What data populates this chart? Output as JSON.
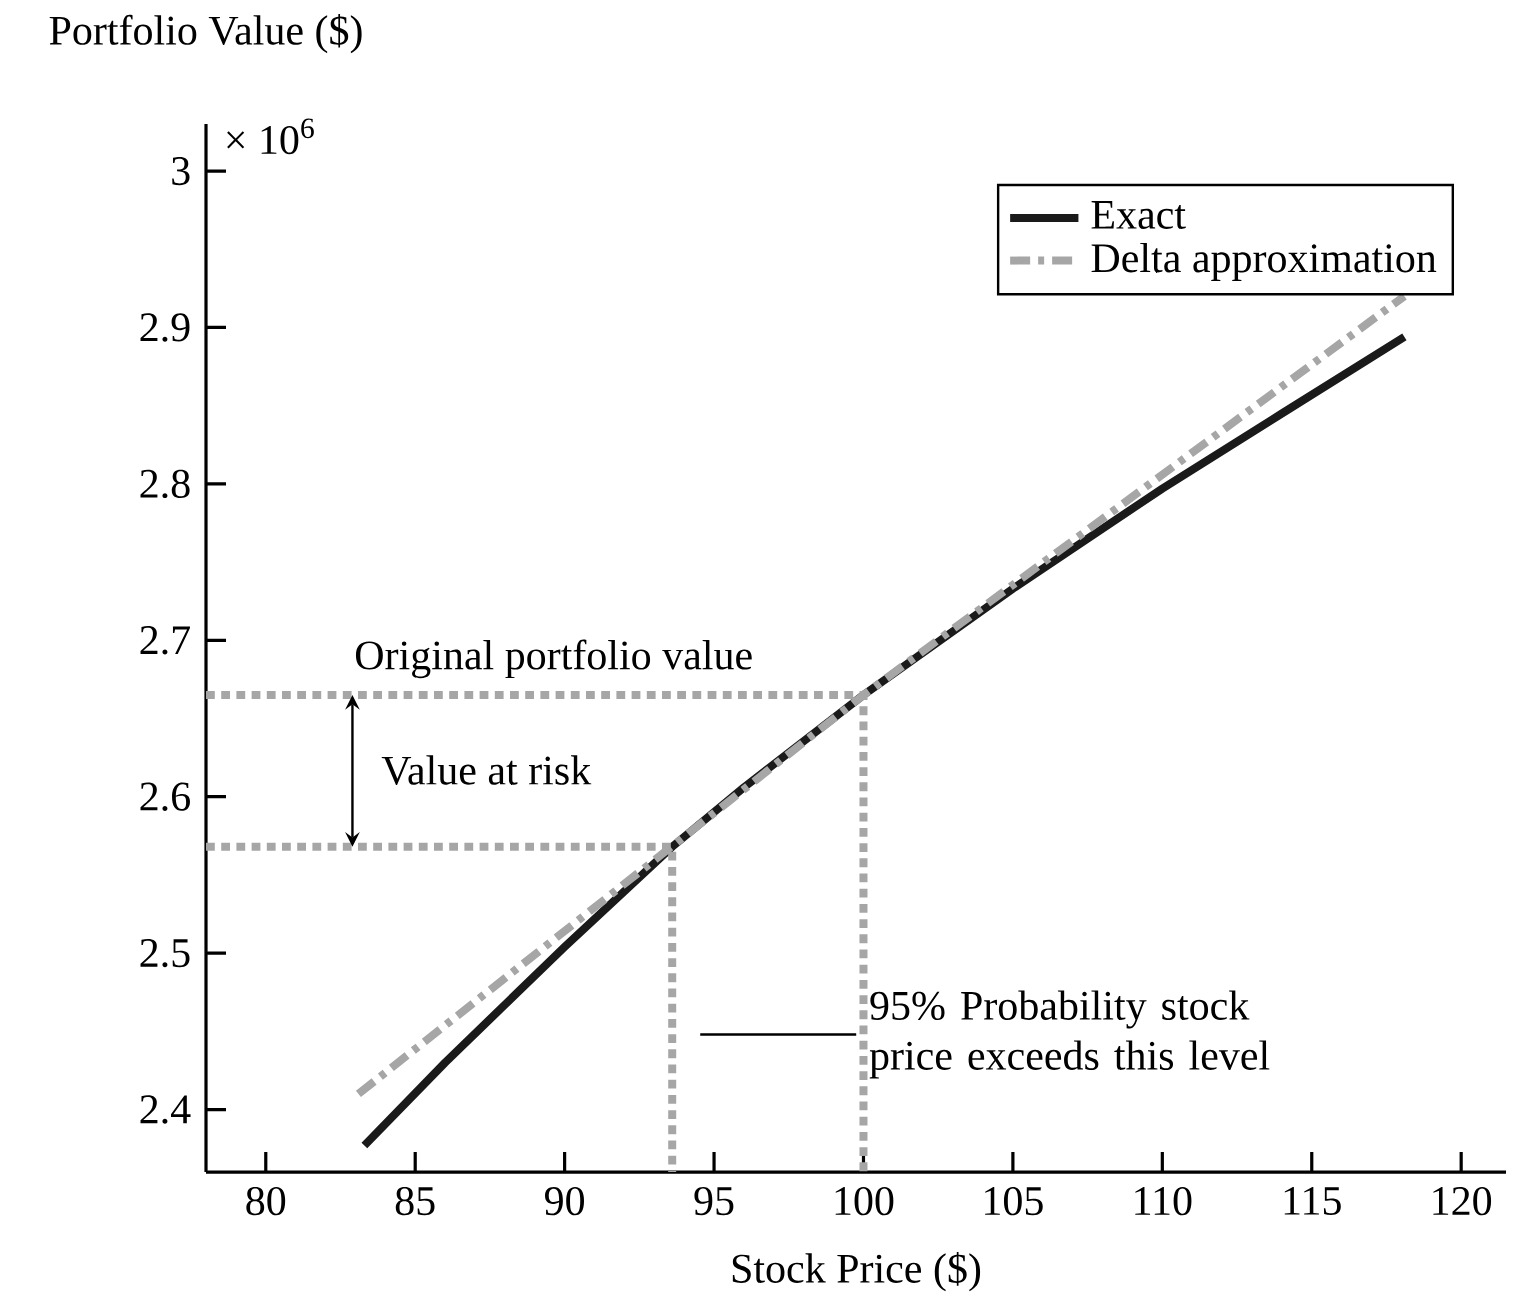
{
  "chart_data": {
    "type": "line",
    "xlabel": "Stock Price ($)",
    "ylabel": "Portfolio Value ($)",
    "xlim": [
      78,
      121.5
    ],
    "ylim": [
      2.36,
      3.03
    ],
    "xticks": [
      80,
      85,
      90,
      95,
      100,
      105,
      110,
      115,
      120
    ],
    "yticks": [
      2.4,
      2.5,
      2.6,
      2.7,
      2.8,
      2.9,
      3
    ],
    "legend": "top right",
    "grid": false,
    "series": [
      {
        "name": "Exact",
        "color": "#1a1a1a",
        "line_style": "solid",
        "x": [
          83.3,
          86,
          90,
          93.6,
          96,
          100,
          105,
          110,
          114,
          118.1
        ],
        "values": [
          2.377,
          2.43,
          2.504,
          2.568,
          2.606,
          2.665,
          2.733,
          2.797,
          2.845,
          2.894
        ]
      },
      {
        "name": "Delta approximation",
        "color": "#a6a6a6",
        "line_style": "dashdot",
        "x": [
          83.1,
          100,
          118.1
        ],
        "values": [
          2.41,
          2.665,
          2.92
        ]
      },
      {
        "color": "#a6a6a6",
        "line_style": "dotted",
        "x": [
          78,
          100,
          100
        ],
        "values": [
          2.665,
          2.665,
          2.36
        ]
      },
      {
        "color": "#a6a6a6",
        "line_style": "dotted",
        "x": [
          78,
          93.6,
          93.6
        ],
        "values": [
          2.568,
          2.568,
          2.36
        ]
      }
    ],
    "annotations": [
      "× 10$^{6}$",
      {
        "text": "Original portfolio value",
        "x": 82.8,
        "y": 2.665
      },
      "Value at risk",
      "95% Probability stock price exceeds this level"
    ]
  }
}
